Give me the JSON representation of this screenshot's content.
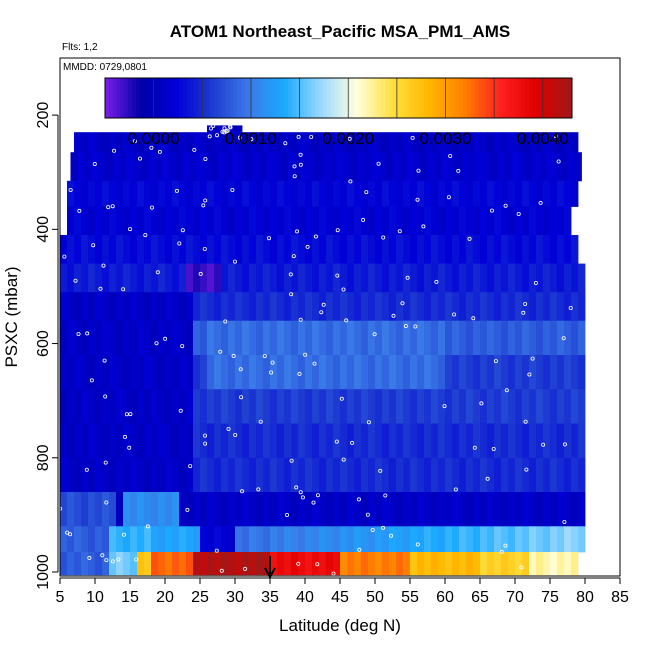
{
  "chart_data": {
    "type": "heatmap",
    "title": "ATOM1 Northeast_Pacific MSA_PM1_AMS",
    "flights_note": "Flts: 1,2",
    "dates_note": "MMDD: 0729,0801",
    "xlabel": "Latitude (deg N)",
    "ylabel": "PSXC (mbar)",
    "xlim": [
      5,
      85
    ],
    "ylim": [
      1000,
      100
    ],
    "x_ticks": [
      "5",
      "10",
      "15",
      "20",
      "25",
      "30",
      "35",
      "40",
      "45",
      "50",
      "55",
      "60",
      "65",
      "70",
      "75",
      "80",
      "85"
    ],
    "y_ticks": [
      "200",
      "400",
      "600",
      "800",
      "1000"
    ],
    "colorbar": {
      "range": [
        -0.0005,
        0.0043
      ],
      "tick_values": [
        0.0,
        0.001,
        0.002,
        0.003,
        0.004
      ],
      "tick_labels": [
        "0.0000",
        "0.0010",
        "0.0020",
        "0.0030",
        "0.0040"
      ],
      "colors": [
        "#7b1fe8",
        "#0000a8",
        "#0000d8",
        "#1e3cd0",
        "#3a7ae8",
        "#1aaaff",
        "#9ad8ff",
        "#ffffe0",
        "#ffe040",
        "#ffb800",
        "#ff8000",
        "#ff2020",
        "#e00000",
        "#a01818"
      ]
    },
    "marker_latitude": 35,
    "layers": [
      {
        "p": 218,
        "pmax": 240,
        "lat_min": 26,
        "lat_max": 31,
        "value": 0.0001
      },
      {
        "p": 230,
        "pmax": 265,
        "lat_min": 7,
        "lat_max": 79,
        "value": 0.0001
      },
      {
        "p": 265,
        "pmax": 315,
        "lat_min": 6.5,
        "lat_max": 79.5,
        "value": 0.00015
      },
      {
        "p": 315,
        "pmax": 360,
        "lat_min": 6,
        "lat_max": 79,
        "value": 0.00025
      },
      {
        "p": 360,
        "pmax": 410,
        "lat_min": 6,
        "lat_max": 78,
        "value": 0.0002
      },
      {
        "p": 410,
        "pmax": 460,
        "lat_min": 5,
        "lat_max": 79,
        "value": 0.0003
      },
      {
        "p": 460,
        "pmax": 510,
        "lat_min": 5,
        "lat_max": 80,
        "value": 0.0004
      },
      {
        "p": 510,
        "pmax": 560,
        "lat_min": 5,
        "lat_max": 80,
        "value": 0.0005
      },
      {
        "p": 560,
        "pmax": 620,
        "lat_min": 5,
        "lat_max": 80,
        "value": 0.0008
      },
      {
        "p": 620,
        "pmax": 680,
        "lat_min": 5,
        "lat_max": 80,
        "value": 0.0006
      },
      {
        "p": 680,
        "pmax": 740,
        "lat_min": 5,
        "lat_max": 80,
        "value": 0.0006
      },
      {
        "p": 740,
        "pmax": 800,
        "lat_min": 5,
        "lat_max": 80,
        "value": 0.0005
      },
      {
        "p": 800,
        "pmax": 860,
        "lat_min": 5,
        "lat_max": 80,
        "value": 0.0005
      },
      {
        "p": 860,
        "pmax": 920,
        "lat_min": 5,
        "lat_max": 80,
        "value": 0.0001
      },
      {
        "p": 920,
        "pmax": 965,
        "lat_min": 5,
        "lat_max": 80,
        "value": 0.0012
      },
      {
        "p": 965,
        "pmax": 1005,
        "lat_min": 5,
        "lat_max": 79,
        "value": 0.0035
      }
    ]
  }
}
